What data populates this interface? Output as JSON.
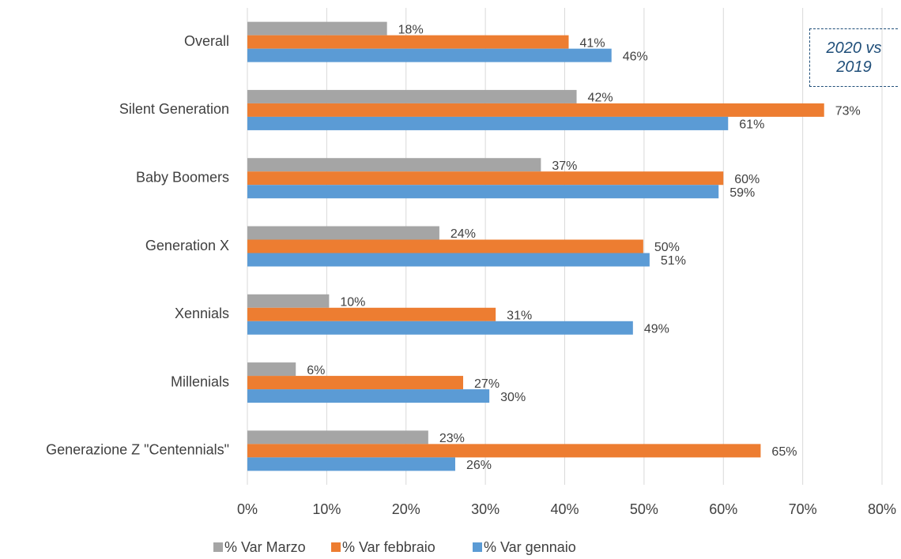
{
  "chart_data": {
    "type": "hbar",
    "annotation": "2020 vs 2019",
    "categories": [
      "Overall",
      "Silent Generation",
      "Baby Boomers",
      "Generation X",
      "Xennials",
      "Millenials",
      "Generazione Z \"Centennials\""
    ],
    "series": [
      {
        "name": "% Var Marzo",
        "color": "#a5a5a5",
        "values": [
          17.6,
          41.5,
          37.0,
          24.2,
          10.3,
          6.1,
          22.8
        ],
        "value_labels": [
          "18%",
          "42%",
          "37%",
          "24%",
          "10%",
          "6%",
          "23%"
        ]
      },
      {
        "name": "% Var febbraio",
        "color": "#ed7d31",
        "values": [
          40.5,
          72.7,
          60.0,
          49.9,
          31.3,
          27.2,
          64.7
        ],
        "value_labels": [
          "41%",
          "73%",
          "60%",
          "50%",
          "31%",
          "27%",
          "65%"
        ]
      },
      {
        "name": "% Var gennaio",
        "color": "#5b9bd5",
        "values": [
          45.9,
          60.6,
          59.4,
          50.7,
          48.6,
          30.5,
          26.2
        ],
        "value_labels": [
          "46%",
          "61%",
          "59%",
          "51%",
          "49%",
          "30%",
          "26%"
        ]
      }
    ],
    "xlim": [
      0,
      80
    ],
    "xticks": [
      {
        "value": 0,
        "label": "0%"
      },
      {
        "value": 10,
        "label": "10%"
      },
      {
        "value": 20,
        "label": "20%"
      },
      {
        "value": 30,
        "label": "30%"
      },
      {
        "value": 40,
        "label": "40%"
      },
      {
        "value": 50,
        "label": "50%"
      },
      {
        "value": 60,
        "label": "60%"
      },
      {
        "value": 70,
        "label": "70%"
      },
      {
        "value": 80,
        "label": "80%"
      }
    ],
    "grid": true,
    "legend": "bottom"
  }
}
